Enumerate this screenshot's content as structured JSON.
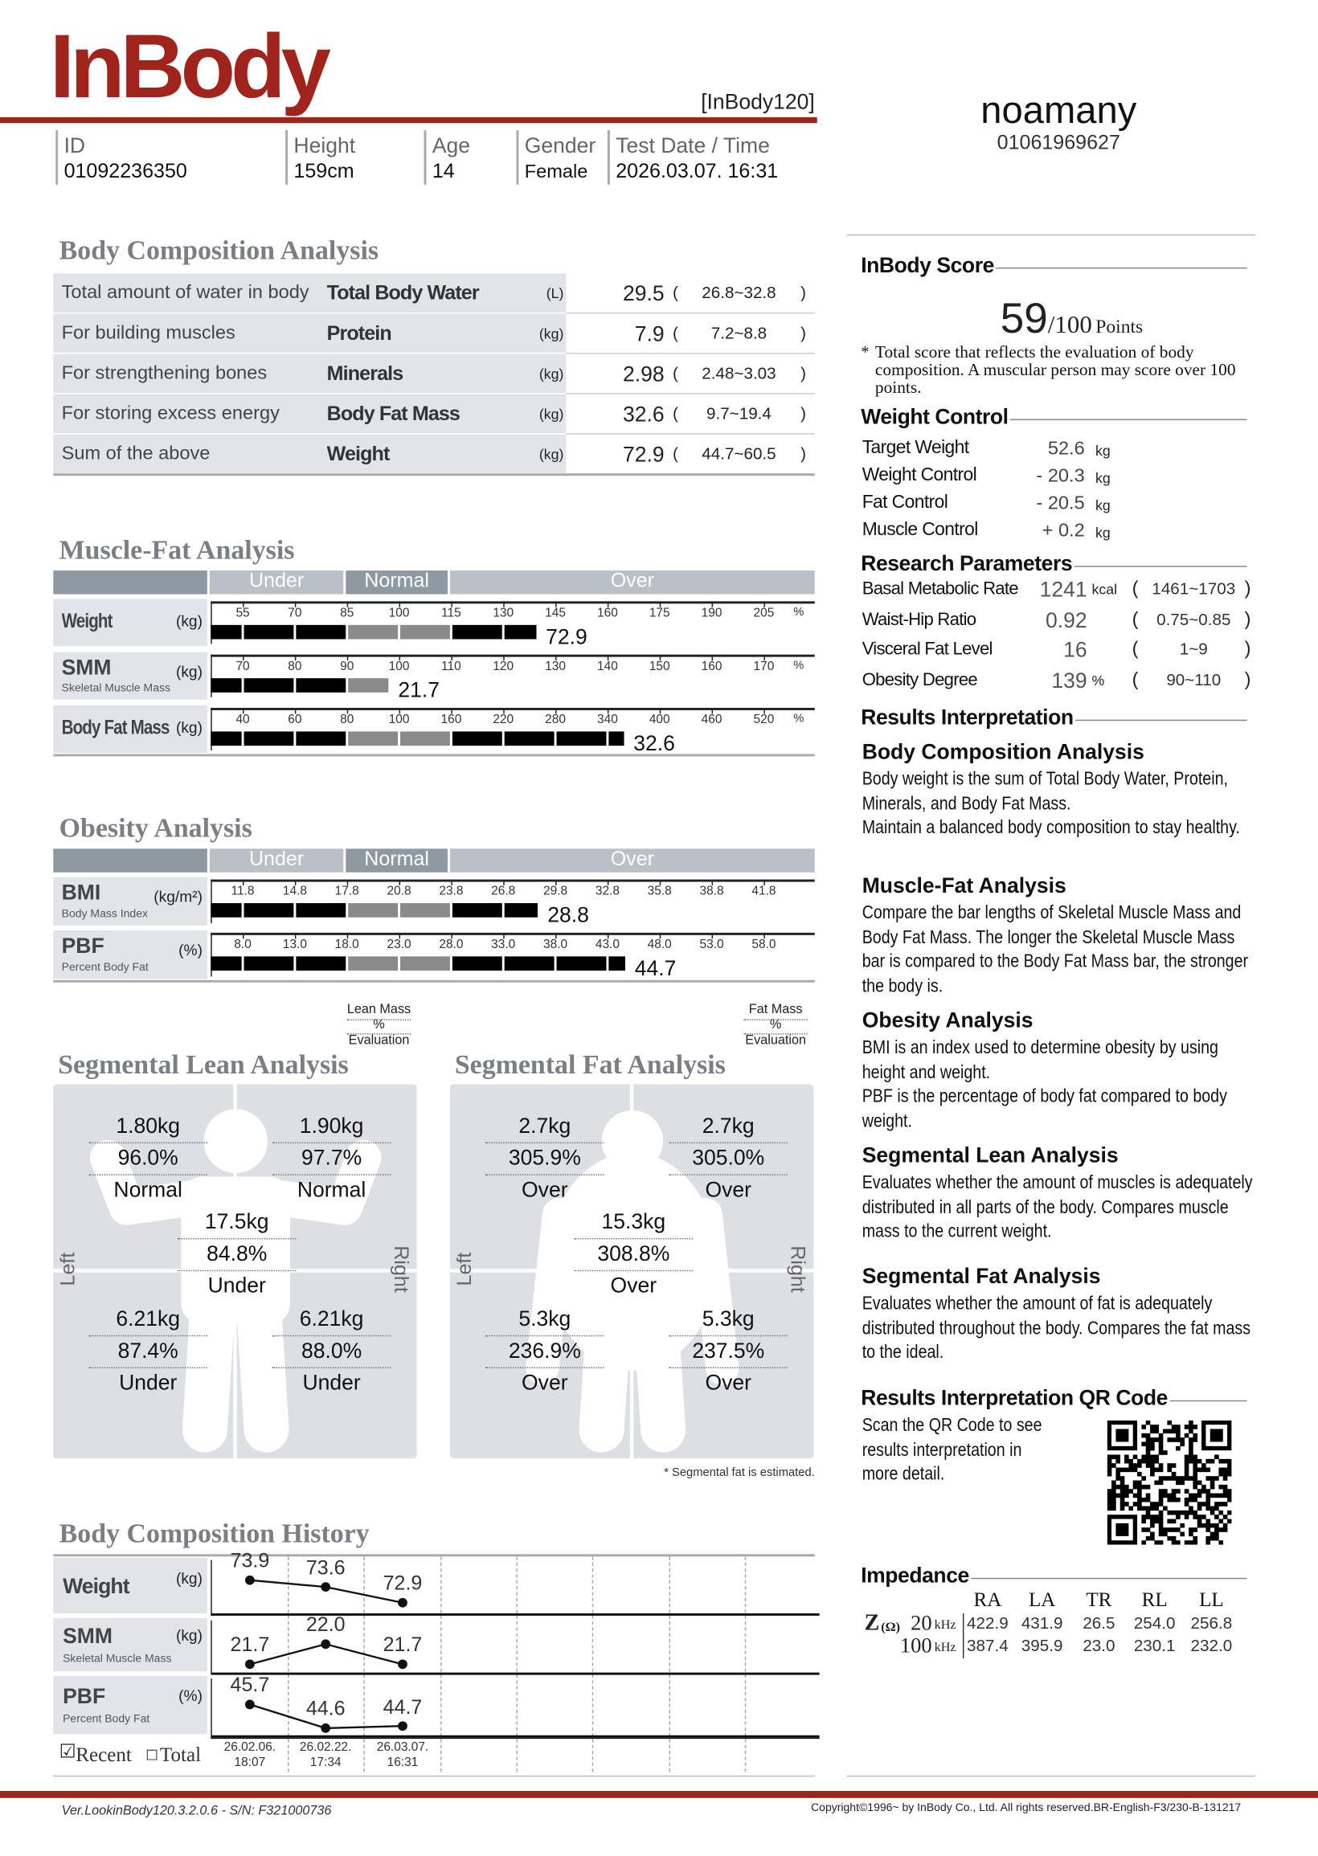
{
  "header": {
    "logo": "InBody",
    "model": "[InBody120]",
    "brand_color": "#A0231C"
  },
  "user": {
    "name": "noamany",
    "phone": "01061969627"
  },
  "info": [
    {
      "label": "ID",
      "value": "01092236350"
    },
    {
      "label": "Height",
      "value": "159cm"
    },
    {
      "label": "Age",
      "value": "14"
    },
    {
      "label": "Gender",
      "value": "Female"
    },
    {
      "label": "Test Date / Time",
      "value": "2026.03.07. 16:31"
    }
  ],
  "bca": {
    "title": "Body Composition Analysis",
    "rows": [
      {
        "desc": "Total amount of water in body",
        "name": "Total Body Water",
        "unit": "(L)",
        "value": "29.5",
        "range": "26.8~32.8"
      },
      {
        "desc": "For building muscles",
        "name": "Protein",
        "unit": "(kg)",
        "value": "7.9",
        "range": "7.2~8.8"
      },
      {
        "desc": "For strengthening bones",
        "name": "Minerals",
        "unit": "(kg)",
        "value": "2.98",
        "range": "2.48~3.03"
      },
      {
        "desc": "For storing excess energy",
        "name": "Body Fat Mass",
        "unit": "(kg)",
        "value": "32.6",
        "range": "9.7~19.4"
      },
      {
        "desc": "Sum of the above",
        "name": "Weight",
        "unit": "(kg)",
        "value": "72.9",
        "range": "44.7~60.5"
      }
    ]
  },
  "mfa": {
    "title": "Muscle-Fat Analysis",
    "bands": [
      "Under",
      "Normal",
      "Over"
    ],
    "rows": [
      {
        "name": "Weight",
        "sub": "",
        "unit": "(kg)",
        "tick_unit": "%",
        "ticks": [
          "55",
          "70",
          "85",
          "100",
          "115",
          "130",
          "145",
          "160",
          "175",
          "190",
          "205"
        ],
        "value": "72.9",
        "bar_level": 139.5
      },
      {
        "name": "SMM",
        "sub": "Skeletal Muscle Mass",
        "unit": "(kg)",
        "tick_unit": "%",
        "ticks": [
          "70",
          "80",
          "90",
          "100",
          "110",
          "120",
          "130",
          "140",
          "150",
          "160",
          "170"
        ],
        "value": "21.7",
        "bar_level": 98
      },
      {
        "name": "Body Fat Mass",
        "sub": "",
        "unit": "(kg)",
        "tick_unit": "%",
        "ticks": [
          "40",
          "60",
          "80",
          "100",
          "160",
          "220",
          "280",
          "340",
          "400",
          "460",
          "520"
        ],
        "value": "32.6",
        "bar_level": 359
      }
    ]
  },
  "obesity": {
    "title": "Obesity Analysis",
    "bands": [
      "Under",
      "Normal",
      "Over"
    ],
    "rows": [
      {
        "name": "BMI",
        "sub": "Body Mass Index",
        "unit": "(kg/m²)",
        "tick_unit": "",
        "ticks": [
          "11.8",
          "14.8",
          "17.8",
          "20.8",
          "23.8",
          "26.8",
          "29.8",
          "32.8",
          "35.8",
          "38.8",
          "41.8"
        ],
        "value": "28.8",
        "bar_level": 28.8
      },
      {
        "name": "PBF",
        "sub": "Percent Body Fat",
        "unit": "(%)",
        "tick_unit": "",
        "ticks": [
          "8.0",
          "13.0",
          "18.0",
          "23.0",
          "28.0",
          "33.0",
          "38.0",
          "43.0",
          "48.0",
          "53.0",
          "58.0"
        ],
        "value": "44.7",
        "bar_level": 44.7
      }
    ]
  },
  "segmental_lean": {
    "title": "Segmental Lean Analysis",
    "legend": [
      "Lean Mass",
      "%",
      "Evaluation"
    ],
    "side_left": "Left",
    "side_right": "Right",
    "left_arm": {
      "kg": "1.80kg",
      "pct": "96.0%",
      "eval": "Normal"
    },
    "right_arm": {
      "kg": "1.90kg",
      "pct": "97.7%",
      "eval": "Normal"
    },
    "trunk": {
      "kg": "17.5kg",
      "pct": "84.8%",
      "eval": "Under"
    },
    "left_leg": {
      "kg": "6.21kg",
      "pct": "87.4%",
      "eval": "Under"
    },
    "right_leg": {
      "kg": "6.21kg",
      "pct": "88.0%",
      "eval": "Under"
    }
  },
  "segmental_fat": {
    "title": "Segmental Fat Analysis",
    "legend": [
      "Fat Mass",
      "%",
      "Evaluation"
    ],
    "side_left": "Left",
    "side_right": "Right",
    "left_arm": {
      "kg": "2.7kg",
      "pct": "305.9%",
      "eval": "Over"
    },
    "right_arm": {
      "kg": "2.7kg",
      "pct": "305.0%",
      "eval": "Over"
    },
    "trunk": {
      "kg": "15.3kg",
      "pct": "308.8%",
      "eval": "Over"
    },
    "left_leg": {
      "kg": "5.3kg",
      "pct": "236.9%",
      "eval": "Over"
    },
    "right_leg": {
      "kg": "5.3kg",
      "pct": "237.5%",
      "eval": "Over"
    },
    "note": "* Segmental fat is estimated."
  },
  "history": {
    "title": "Body Composition History",
    "rows": [
      {
        "name": "Weight",
        "sub": "",
        "unit": "(kg)",
        "values": [
          "73.9",
          "73.6",
          "72.9"
        ]
      },
      {
        "name": "SMM",
        "sub": "Skeletal Muscle Mass",
        "unit": "(kg)",
        "values": [
          "21.7",
          "22.0",
          "21.7"
        ]
      },
      {
        "name": "PBF",
        "sub": "Percent Body Fat",
        "unit": "(%)",
        "values": [
          "45.7",
          "44.6",
          "44.7"
        ]
      }
    ],
    "dates": [
      {
        "date": "26.02.06.",
        "time": "18:07"
      },
      {
        "date": "26.02.22.",
        "time": "17:34"
      },
      {
        "date": "26.03.07.",
        "time": "16:31"
      }
    ],
    "recent_label": "Recent",
    "recent_checked": true,
    "total_label": "Total",
    "total_checked": false
  },
  "score": {
    "heading": "InBody Score",
    "value": "59",
    "max": "/100",
    "unit": "Points",
    "note_star": "*",
    "note": "Total score that reflects the evaluation of body composition. A muscular person may score over 100 points."
  },
  "weight_control": {
    "heading": "Weight Control",
    "rows": [
      {
        "label": "Target Weight",
        "value": "52.6",
        "unit": "kg"
      },
      {
        "label": "Weight Control",
        "value": "- 20.3",
        "unit": "kg"
      },
      {
        "label": "Fat Control",
        "value": "- 20.5",
        "unit": "kg"
      },
      {
        "label": "Muscle Control",
        "value": "+ 0.2",
        "unit": "kg"
      }
    ]
  },
  "research": {
    "heading": "Research Parameters",
    "rows": [
      {
        "label": "Basal Metabolic Rate",
        "value": "1241",
        "unit": "kcal",
        "range": "1461~1703"
      },
      {
        "label": "Waist-Hip Ratio",
        "value": "0.92",
        "unit": "",
        "range": "0.75~0.85"
      },
      {
        "label": "Visceral Fat Level",
        "value": "16",
        "unit": "",
        "range": "1~9"
      },
      {
        "label": "Obesity Degree",
        "value": "139",
        "unit": "%",
        "range": "90~110"
      }
    ]
  },
  "interpretation": {
    "heading": "Results Interpretation",
    "sections": [
      {
        "title": "Body Composition Analysis",
        "paragraphs": [
          "Body weight is the sum of Total Body Water, Protein, Minerals, and Body Fat Mass.",
          "Maintain a balanced body composition to stay healthy."
        ]
      },
      {
        "title": "Muscle-Fat Analysis",
        "paragraphs": [
          "Compare the bar lengths of Skeletal Muscle Mass and Body Fat Mass. The longer the Skeletal Muscle Mass bar is compared to the Body Fat Mass bar, the stronger the body is."
        ]
      },
      {
        "title": "Obesity Analysis",
        "paragraphs": [
          "BMI is an index used to determine obesity by using height and weight.",
          "PBF is the percentage of body fat compared to body weight."
        ]
      },
      {
        "title": "Segmental Lean Analysis",
        "paragraphs": [
          "Evaluates whether the amount of muscles is adequately distributed in all parts of the body. Compares muscle mass to the current weight."
        ]
      },
      {
        "title": "Segmental Fat Analysis",
        "paragraphs": [
          "Evaluates whether the amount of fat is adequately distributed throughout the body. Compares the fat mass to the ideal."
        ]
      }
    ],
    "qr_heading": "Results Interpretation QR Code",
    "qr_text": "Scan the QR Code to see results interpretation in more detail.",
    "qr_icon": "qr-code"
  },
  "impedance": {
    "heading": "Impedance",
    "columns": [
      "RA",
      "LA",
      "TR",
      "RL",
      "LL"
    ],
    "z_label": "Z",
    "z_unit": "(Ω)",
    "rows": [
      {
        "freq": "20",
        "freq_unit": "kHz",
        "values": [
          "422.9",
          "431.9",
          "26.5",
          "254.0",
          "256.8"
        ]
      },
      {
        "freq": "100",
        "freq_unit": "kHz",
        "values": [
          "387.4",
          "395.9",
          "23.0",
          "230.1",
          "232.0"
        ]
      }
    ]
  },
  "footer": {
    "version": "Ver.LookinBody120.3.2.0.6 - S/N: F321000736",
    "copyright": "Copyright©1996~ by InBody Co., Ltd. All rights reserved.BR-English-F3/230-B-131217"
  },
  "colors": {
    "brand": "#A0231C",
    "panel": "#E1E4E8",
    "band_light": "#B9C0C6",
    "band_dark": "#8F99A2",
    "bar_black": "#000000",
    "bar_gray": "#8A8A8A"
  }
}
